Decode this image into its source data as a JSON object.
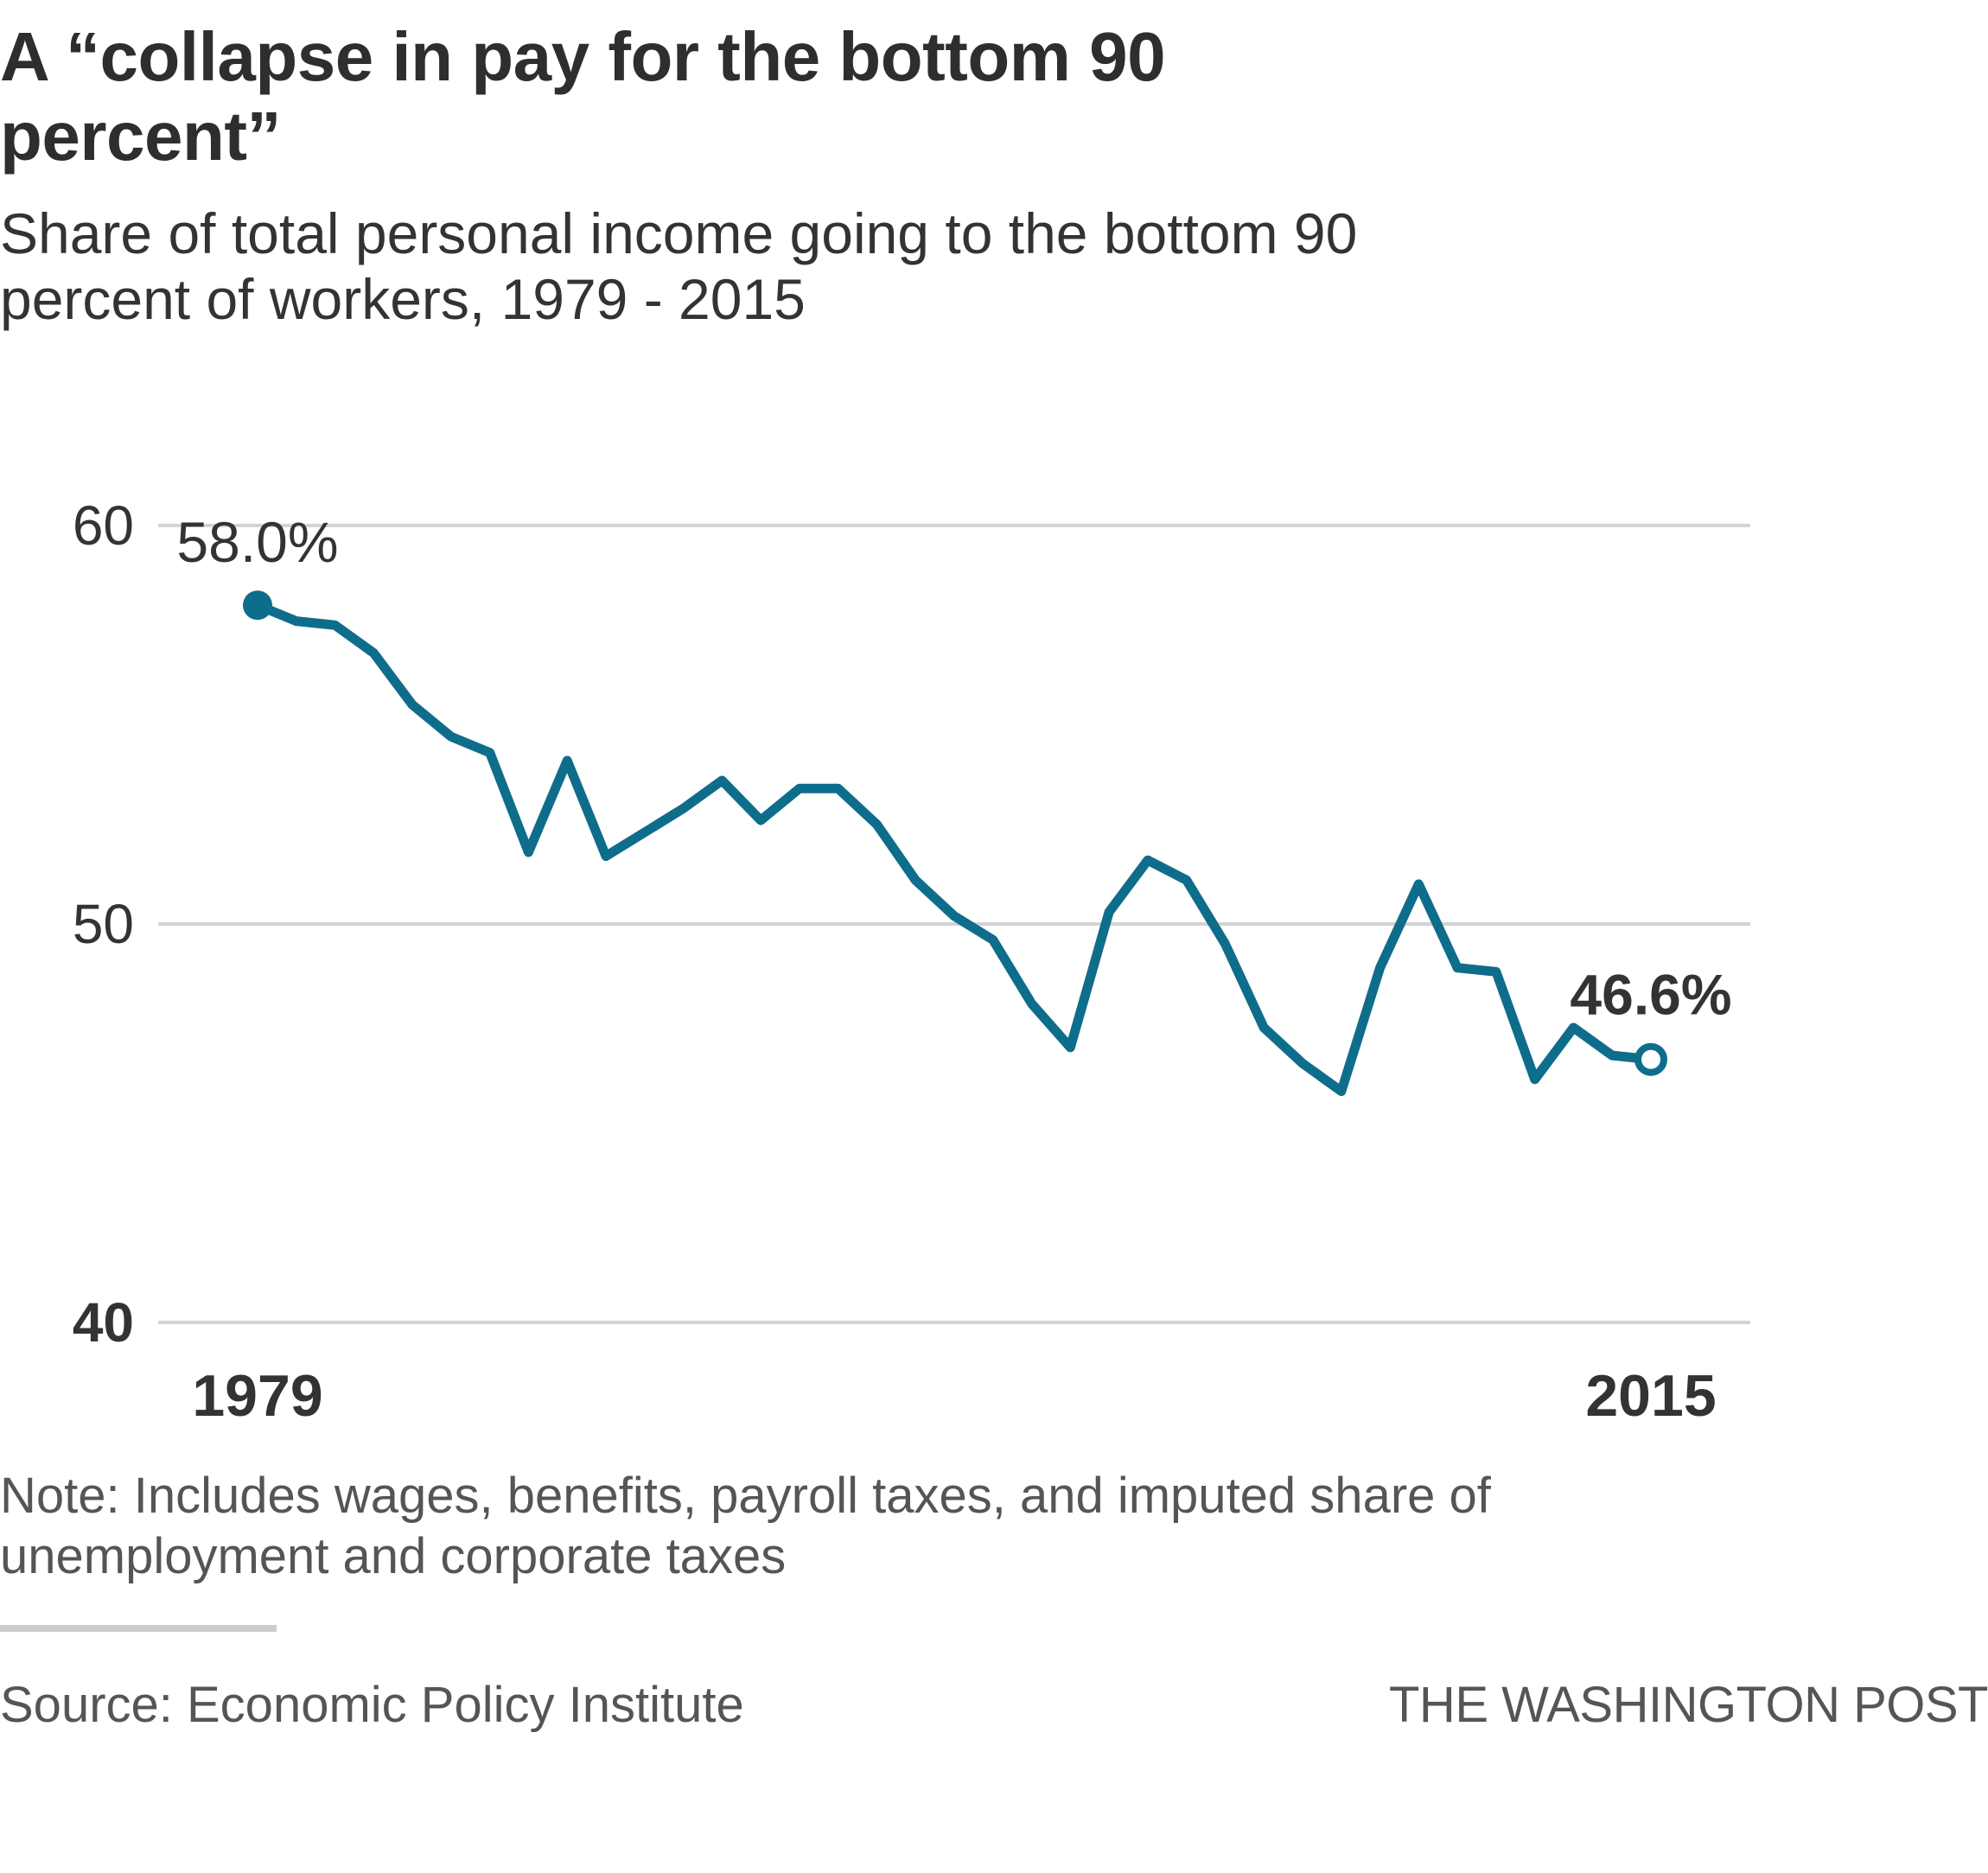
{
  "title": "A “collapse in pay for the bottom 90 percent”",
  "subtitle": "Share of total personal income going to the bottom 90 percent of workers, 1979 - 2015",
  "note": "Note: Includes wages, benefits, payroll taxes, and imputed share of unemployment and corporate taxes",
  "source": "Source: Economic Policy Institute",
  "credit": "THE WASHINGTON POST",
  "colors": {
    "line": "#0f6d8c",
    "grid": "#d3d3d3",
    "text": "#333333",
    "muted": "#555555"
  },
  "chart_data": {
    "type": "line",
    "title": "A “collapse in pay for the bottom 90 percent”",
    "xlabel": "",
    "ylabel": "",
    "xlim": [
      1979,
      2015
    ],
    "ylim": [
      40,
      60
    ],
    "y_ticks": [
      {
        "value": 60,
        "label": "60",
        "bold": false
      },
      {
        "value": 50,
        "label": "50",
        "bold": false
      },
      {
        "value": 40,
        "label": "40",
        "bold": true
      }
    ],
    "x_ticks": [
      {
        "value": 1979,
        "label": "1979"
      },
      {
        "value": 2015,
        "label": "2015"
      }
    ],
    "grid": true,
    "series": [
      {
        "x": [
          1979,
          1980,
          1981,
          1982,
          1983,
          1984,
          1985,
          1986,
          1987,
          1988,
          1989,
          1990,
          1991,
          1992,
          1993,
          1994,
          1995,
          1996,
          1997,
          1998,
          1999,
          2000,
          2001,
          2002,
          2003,
          2004,
          2005,
          2006,
          2007,
          2008,
          2009,
          2010,
          2011,
          2012,
          2013,
          2014,
          2015
        ],
        "values": [
          58.0,
          57.6,
          57.5,
          56.8,
          55.5,
          54.7,
          54.3,
          51.8,
          54.1,
          51.7,
          52.3,
          52.9,
          53.6,
          52.6,
          53.4,
          53.4,
          52.5,
          51.1,
          50.2,
          49.6,
          48.0,
          46.9,
          50.3,
          51.6,
          51.1,
          49.5,
          47.4,
          46.5,
          45.8,
          48.9,
          51.0,
          48.9,
          48.8,
          46.1,
          47.4,
          46.7,
          46.6
        ]
      }
    ],
    "annotations": [
      {
        "label": "58.0%",
        "x": 1979,
        "y": 58.0,
        "bold": false
      },
      {
        "label": "46.6%",
        "x": 2015,
        "y": 46.6,
        "bold": true
      }
    ]
  }
}
